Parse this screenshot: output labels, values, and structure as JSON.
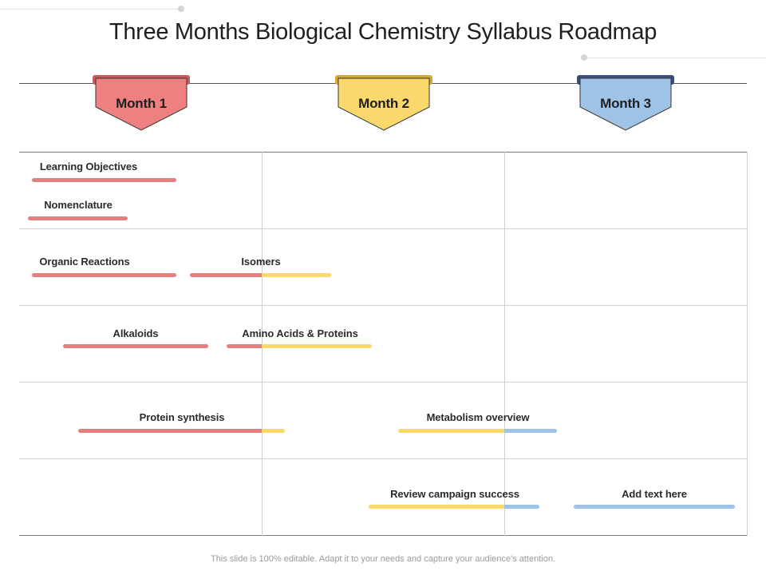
{
  "title": "Three Months Biological Chemistry Syllabus Roadmap",
  "colors": {
    "month1": "#EE8080",
    "month2": "#FAD86B",
    "month3": "#9FC3E6"
  },
  "months": [
    {
      "label": "Month 1",
      "color": "#EE8080",
      "shade": "#C85B5B"
    },
    {
      "label": "Month 2",
      "color": "#FAD86B",
      "shade": "#D4A936"
    },
    {
      "label": "Month 3",
      "color": "#9FC3E6",
      "shade": "#3A4F80"
    }
  ],
  "tasks": [
    {
      "label": "Learning Objectives",
      "month_span": [
        "Month 1"
      ]
    },
    {
      "label": "Nomenclature",
      "month_span": [
        "Month 1"
      ]
    },
    {
      "label": "Organic Reactions",
      "month_span": [
        "Month 1"
      ]
    },
    {
      "label": "Isomers",
      "month_span": [
        "Month 1",
        "Month 2"
      ]
    },
    {
      "label": "Alkaloids",
      "month_span": [
        "Month 1"
      ]
    },
    {
      "label": "Amino Acids & Proteins",
      "month_span": [
        "Month 1",
        "Month 2"
      ]
    },
    {
      "label": "Protein synthesis",
      "month_span": [
        "Month 1",
        "Month 2"
      ]
    },
    {
      "label": "Metabolism overview",
      "month_span": [
        "Month 2",
        "Month 3"
      ]
    },
    {
      "label": "Review campaign success",
      "month_span": [
        "Month 2",
        "Month 3"
      ]
    },
    {
      "label": "Add text here",
      "month_span": [
        "Month 3"
      ]
    }
  ],
  "footer": "This slide is 100% editable. Adapt it to your needs and capture your audience's attention."
}
